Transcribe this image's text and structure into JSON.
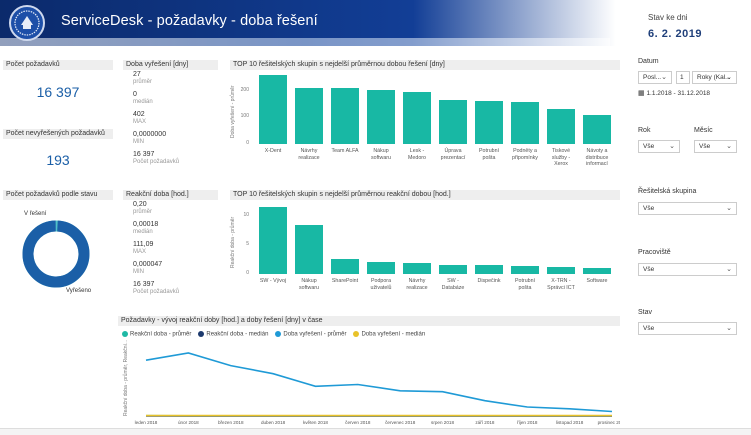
{
  "header": {
    "title": "ServiceDesk - požadavky - doba řešení",
    "date_label": "Stav ke dni",
    "date_value": "6. 2. 2019"
  },
  "kpis": {
    "requests_label": "Počet požadavků",
    "requests_value": "16 397",
    "unresolved_label": "Počet nevyřešených požadavků",
    "unresolved_value": "193"
  },
  "resolution_stats": {
    "title": "Doba vyřešení [dny]",
    "rows": [
      {
        "value": "27",
        "label": "průměr"
      },
      {
        "value": "0",
        "label": "medián"
      },
      {
        "value": "402",
        "label": "MAX"
      },
      {
        "value": "0,0000000",
        "label": "MIN"
      },
      {
        "value": "16 397",
        "label": "Počet požadavků"
      }
    ]
  },
  "reaction_stats": {
    "title": "Reakční doba [hod.]",
    "rows": [
      {
        "value": "0,20",
        "label": "průměr"
      },
      {
        "value": "0,00018",
        "label": "medián"
      },
      {
        "value": "111,09",
        "label": "MAX"
      },
      {
        "value": "0,000047",
        "label": "MIN"
      },
      {
        "value": "16 397",
        "label": "Počet požadavků"
      }
    ]
  },
  "state_donut": {
    "title": "Počet požadavků podle stavu",
    "label_open": "V řešení",
    "label_resolved": "Vyřešeno",
    "resolved_fraction": 0.988,
    "colors": {
      "resolved": "#1b5fa7",
      "open": "#4fc1c9"
    }
  },
  "filters": {
    "datum_label": "Datum",
    "datum_mode": "Posl...",
    "datum_count": "1",
    "datum_unit": "Roky (Kal...",
    "datum_range": "1.1.2018 - 31.12.2018",
    "rok_label": "Rok",
    "rok_value": "Vše",
    "mesic_label": "Měsíc",
    "mesic_value": "Vše",
    "skupina_label": "Řešitelská skupina",
    "skupina_value": "Vše",
    "pracoviste_label": "Pracoviště",
    "pracoviste_value": "Vše",
    "stav_label": "Stav",
    "stav_value": "Vše"
  },
  "chart_data": [
    {
      "type": "bar",
      "title": "TOP 10 řešitelských skupin s nejdelší průměrnou dobou řešení [dny]",
      "ylabel": "Doba vyřešení - průměr",
      "yticks": [
        "0",
        "100",
        "200"
      ],
      "ylim": [
        0,
        270
      ],
      "categories": [
        "X-Dent",
        "Návrhy\nrealizace",
        "Team ALFA",
        "Nákup\nsoftwaru",
        "Lesk -\nMedoro",
        "Úprava\nprezentací",
        "Potrubní\npošta",
        "Podněty a\npřipomínky",
        "Tiskové\nslužby -\nXerox",
        "Návoty a\ndistribuce\ninformací"
      ],
      "values": [
        258,
        211,
        210,
        203,
        194,
        166,
        161,
        156,
        131,
        107
      ],
      "color": "#18b8a4"
    },
    {
      "type": "bar",
      "title": "TOP 10 řešitelských skupin s nejdelší průměrnou reakční dobou [hod.]",
      "ylabel": "Reakční doba - průměr",
      "yticks": [
        "0",
        "5",
        "10"
      ],
      "ylim": [
        0,
        12.5
      ],
      "categories": [
        "SW - Vývoj",
        "Nákup\nsoftwaru",
        "SharePoint",
        "Podpora\nuživatelů",
        "Návrhy\nrealizace",
        "SW -\nDatabáze",
        "Dispečink",
        "Potrubní\npošta",
        "X-TRN -\nSprávci ICT",
        "Software"
      ],
      "values": [
        11.4,
        8.4,
        2.6,
        2.0,
        1.9,
        1.6,
        1.5,
        1.3,
        1.2,
        1.1
      ],
      "color": "#18b8a4"
    },
    {
      "type": "line",
      "title": "Požadavky - vývoj reakční doby [hod.] a doby řešení [dny] v čase",
      "ylabel": "Reakční doba - průměr, Reakční...",
      "ylim": [
        0,
        80
      ],
      "categories": [
        "leden 2018",
        "únor 2018",
        "březen 2018",
        "duben 2018",
        "květen 2018",
        "červen 2018",
        "červenec 2018",
        "srpen 2018",
        "září 2018",
        "říjen 2018",
        "listopad 2018",
        "prosinec 2018"
      ],
      "series": [
        {
          "name": "Reakční doba - průměr",
          "color": "#1fb9a5",
          "values": [
            0.3,
            0.2,
            0.2,
            0.2,
            0.2,
            0.2,
            0.2,
            0.2,
            0.2,
            0.2,
            0.2,
            0.2
          ]
        },
        {
          "name": "Reakční doba - medián",
          "color": "#1d3a6e",
          "values": [
            0.0,
            0.0,
            0.0,
            0.0,
            0.0,
            0.0,
            0.0,
            0.0,
            0.0,
            0.0,
            0.0,
            0.0
          ]
        },
        {
          "name": "Doba vyřešení - průměr",
          "color": "#1f9ad6",
          "values": [
            62,
            70,
            56,
            47,
            33,
            35,
            28,
            27,
            17,
            10,
            8,
            5
          ]
        },
        {
          "name": "Doba vyřešení - medián",
          "color": "#e8c22a",
          "values": [
            0.5,
            0.5,
            0.5,
            0.5,
            0.5,
            0.5,
            0.5,
            0.5,
            0.5,
            0.5,
            0.5,
            0.5
          ]
        }
      ]
    }
  ]
}
